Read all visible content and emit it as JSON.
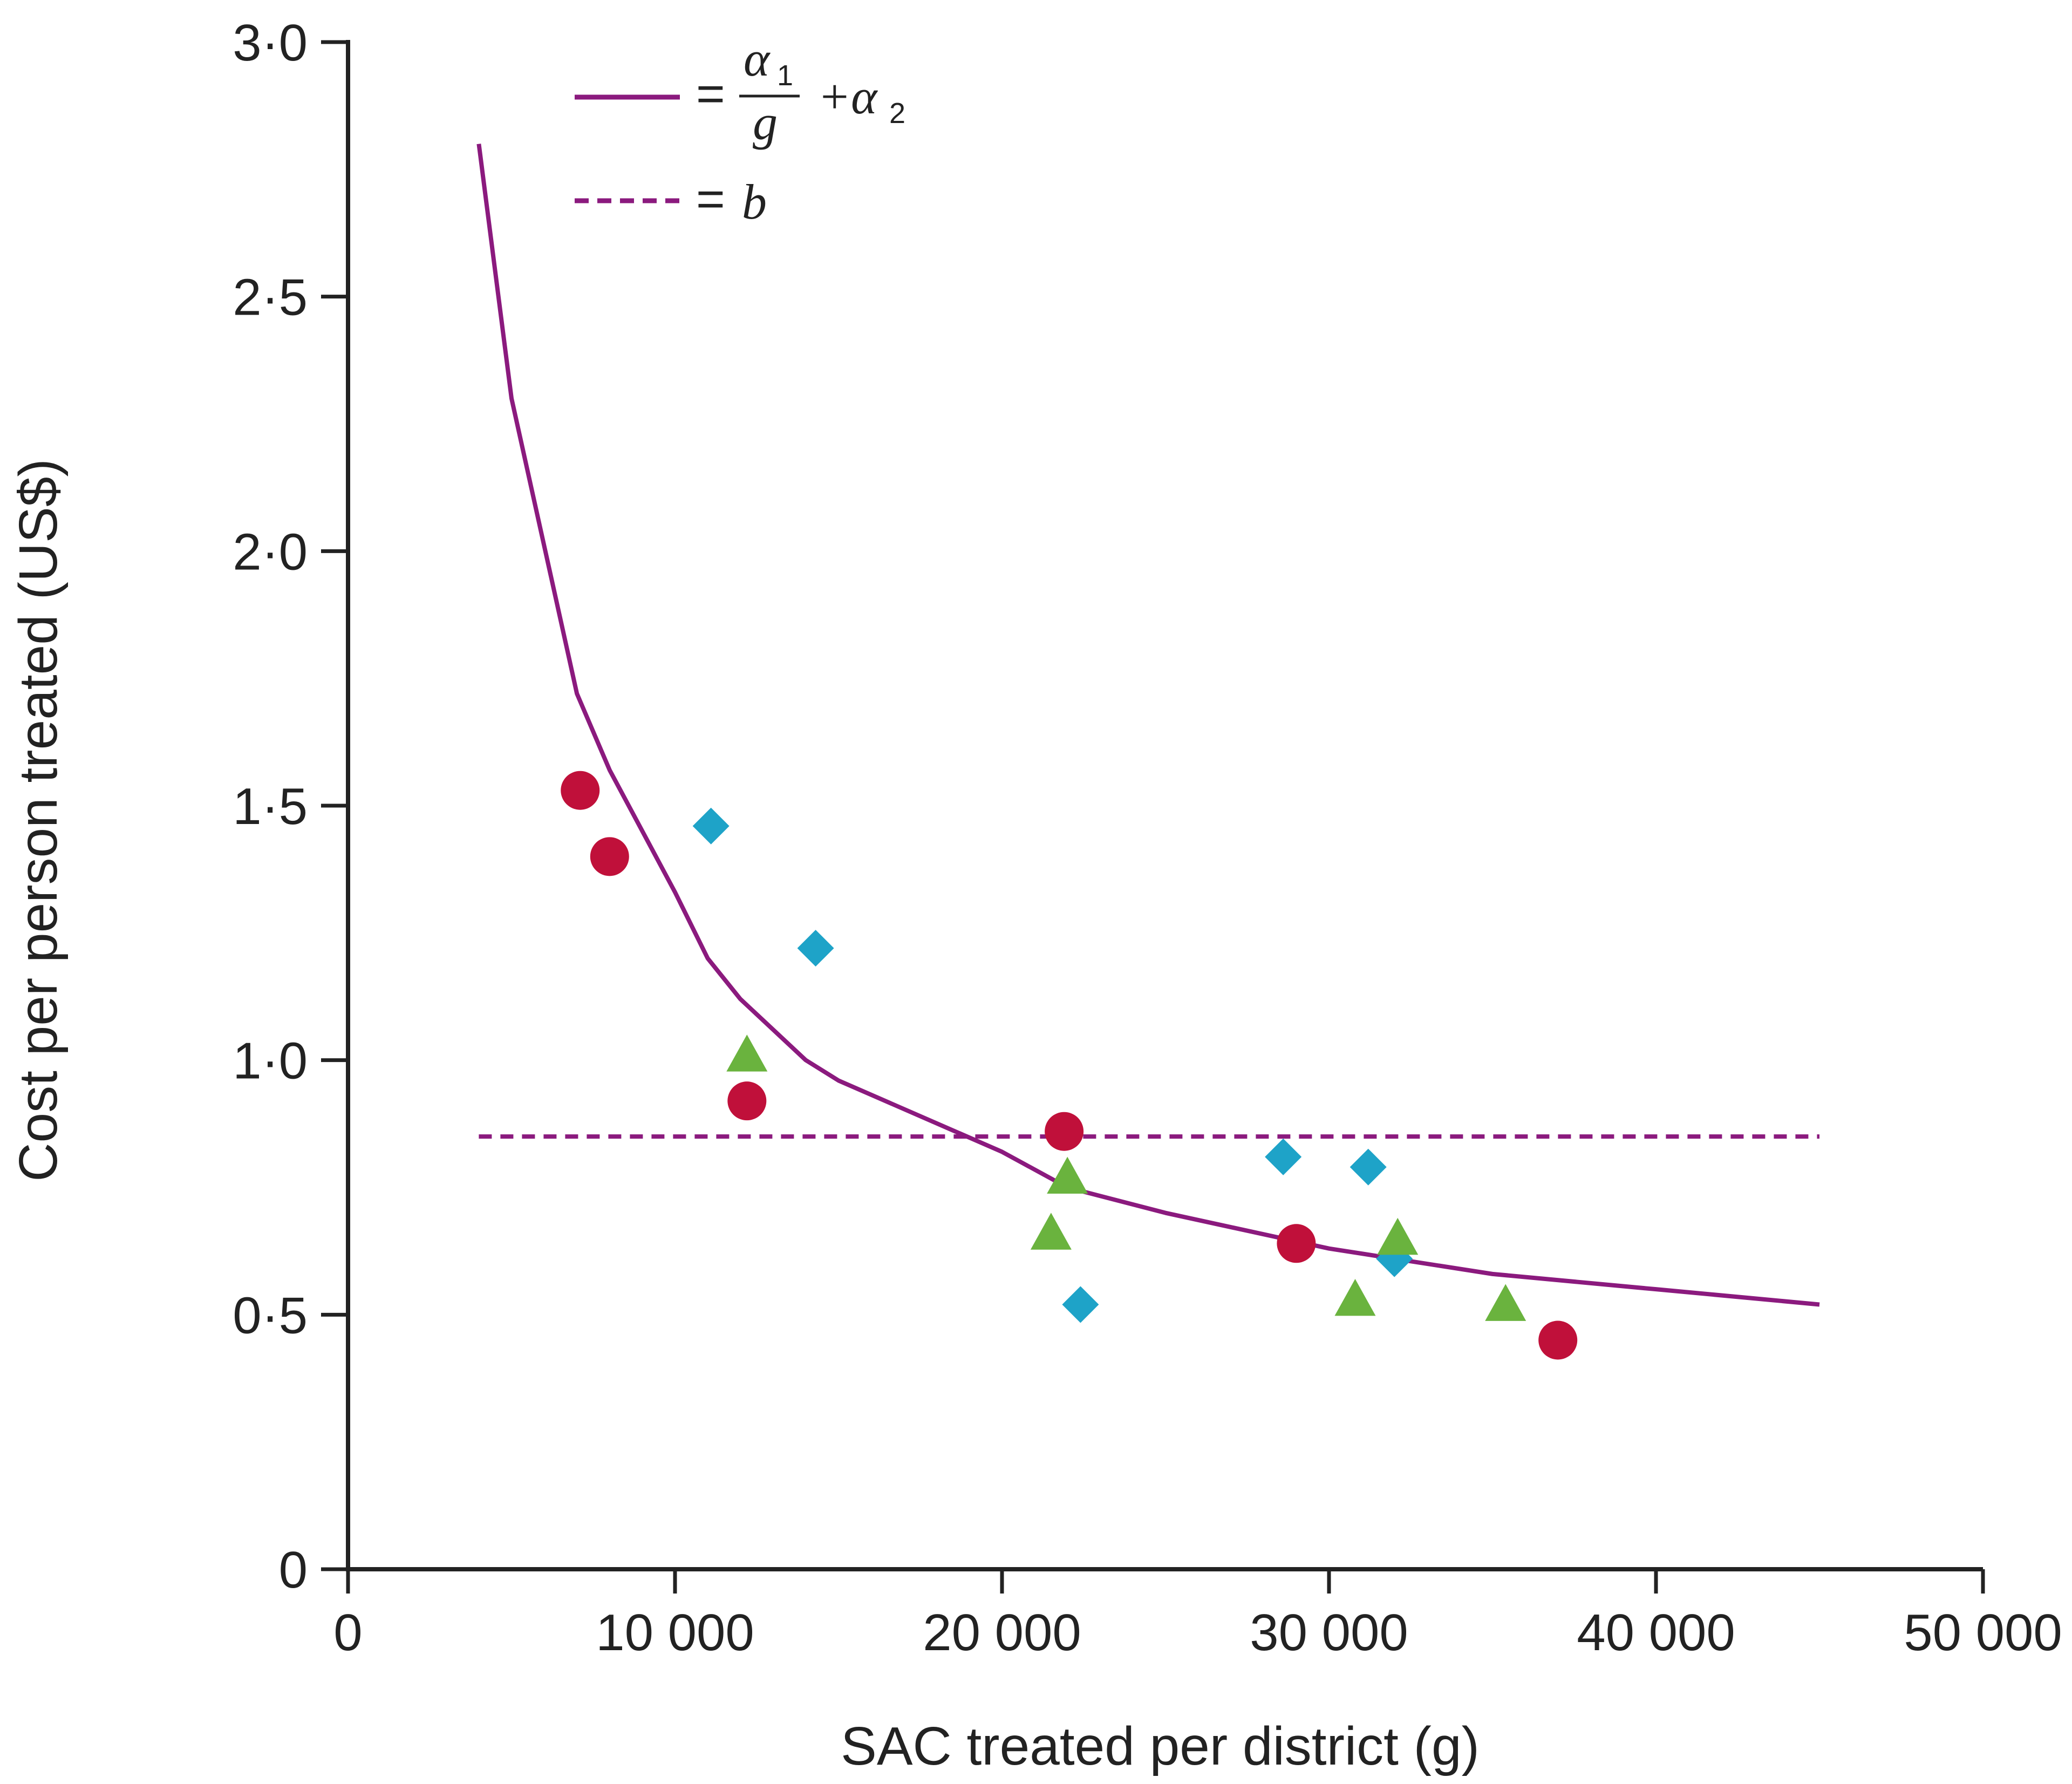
{
  "chart_data": {
    "type": "scatter",
    "xlabel": "SAC treated per district (g)",
    "ylabel": "Cost per person treated (US$)",
    "xlim": [
      0,
      50000
    ],
    "ylim": [
      0,
      3.0
    ],
    "x_ticks": [
      0,
      10000,
      20000,
      30000,
      40000,
      50000
    ],
    "x_tick_labels": [
      "0",
      "10 000",
      "20 000",
      "30 000",
      "40 000",
      "50 000"
    ],
    "y_ticks": [
      0,
      0.5,
      1.0,
      1.5,
      2.0,
      2.5,
      3.0
    ],
    "y_tick_labels": [
      "0",
      "0·5",
      "1·0",
      "1·5",
      "2·0",
      "2·5",
      "3·0"
    ],
    "grid": false,
    "legend": {
      "placement": "top-left",
      "entries": [
        {
          "style": "solid",
          "equals": "=",
          "numerator": "α",
          "numerator_sub": "1",
          "denominator": "g",
          "plus": "+α",
          "plus_sub": "2"
        },
        {
          "style": "dashed",
          "equals": "=",
          "symbol": "b"
        }
      ]
    },
    "curve": {
      "name": "α1/g + α2",
      "color": "#8b1a7e",
      "x": [
        4000,
        5000,
        7000,
        8000,
        10000,
        11000,
        12000,
        14000,
        15000,
        20000,
        22000,
        25000,
        30000,
        35000,
        40000,
        45000
      ],
      "y": [
        2.8,
        2.3,
        1.72,
        1.57,
        1.33,
        1.2,
        1.12,
        1.0,
        0.96,
        0.82,
        0.75,
        0.7,
        0.63,
        0.58,
        0.55,
        0.52
      ]
    },
    "hline": {
      "name": "b",
      "y": 0.85,
      "x_from": 4000,
      "x_to": 45000,
      "color": "#8b1a7e"
    },
    "series": [
      {
        "name": "circles",
        "marker": "circle",
        "color": "#c0103a",
        "points": [
          [
            7100,
            1.53
          ],
          [
            8000,
            1.4
          ],
          [
            12200,
            0.92
          ],
          [
            21900,
            0.86
          ],
          [
            29000,
            0.64
          ],
          [
            37000,
            0.45
          ]
        ]
      },
      {
        "name": "diamonds",
        "marker": "diamond",
        "color": "#1ea3c8",
        "points": [
          [
            11100,
            1.46
          ],
          [
            14300,
            1.22
          ],
          [
            22400,
            0.52
          ],
          [
            28600,
            0.81
          ],
          [
            31200,
            0.79
          ],
          [
            32000,
            0.61
          ]
        ]
      },
      {
        "name": "triangles",
        "marker": "triangle",
        "color": "#6ab33e",
        "points": [
          [
            12200,
            1.01
          ],
          [
            21500,
            0.66
          ],
          [
            22000,
            0.77
          ],
          [
            30800,
            0.53
          ],
          [
            32100,
            0.65
          ],
          [
            35400,
            0.52
          ]
        ]
      }
    ]
  }
}
